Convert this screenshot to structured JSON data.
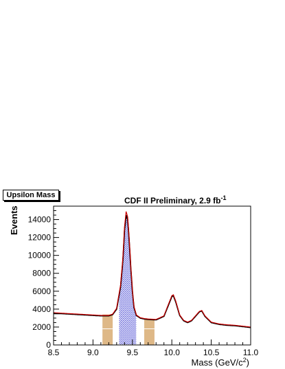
{
  "stat_box_label": "Upsilon Mass",
  "title_main": "CDF II Preliminary, 2.9 fb",
  "title_sup": "-1",
  "chart_data": {
    "type": "histogram",
    "xlabel_main": "Mass (GeV/c",
    "xlabel_sup": "2",
    "xlabel_close": ")",
    "ylabel": "Events",
    "xlim": [
      8.5,
      11.0
    ],
    "ylim": [
      0,
      15500
    ],
    "x_ticks": [
      8.5,
      9.0,
      9.5,
      10.0,
      10.5,
      11.0
    ],
    "x_tick_labels": [
      "8.5",
      "9.0",
      "9.5",
      "10.0",
      "10.5",
      "11.0"
    ],
    "y_ticks": [
      0,
      2000,
      4000,
      6000,
      8000,
      10000,
      12000,
      14000
    ],
    "y_tick_labels": [
      "0",
      "2000",
      "4000",
      "6000",
      "8000",
      "10000",
      "12000",
      "14000"
    ],
    "signal_region": {
      "x_min": 9.33,
      "x_max": 9.55,
      "color": "#3333cc"
    },
    "sideband_regions": [
      {
        "x_min": 9.12,
        "x_max": 9.25,
        "color": "#deb887"
      },
      {
        "x_min": 9.65,
        "x_max": 9.78,
        "color": "#deb887"
      }
    ],
    "data_points": {
      "x": [
        8.5,
        8.6,
        8.7,
        8.8,
        8.9,
        9.0,
        9.1,
        9.2,
        9.25,
        9.3,
        9.35,
        9.38,
        9.4,
        9.42,
        9.44,
        9.46,
        9.48,
        9.5,
        9.52,
        9.55,
        9.6,
        9.65,
        9.7,
        9.8,
        9.9,
        9.95,
        10.0,
        10.02,
        10.05,
        10.1,
        10.15,
        10.2,
        10.25,
        10.3,
        10.35,
        10.38,
        10.42,
        10.5,
        10.6,
        10.7,
        10.8,
        10.9,
        11.0
      ],
      "y": [
        3500,
        3500,
        3450,
        3400,
        3350,
        3300,
        3250,
        3250,
        3400,
        4000,
        6500,
        9500,
        12800,
        14500,
        14000,
        11500,
        8500,
        6000,
        4200,
        3300,
        3000,
        2900,
        2850,
        2800,
        3200,
        4300,
        5400,
        5500,
        4800,
        3300,
        2700,
        2500,
        2700,
        3200,
        3700,
        3800,
        3200,
        2500,
        2300,
        2200,
        2150,
        2050,
        1950
      ]
    },
    "fit_curve": {
      "x": [
        8.5,
        8.6,
        8.7,
        8.8,
        8.9,
        9.0,
        9.1,
        9.2,
        9.25,
        9.3,
        9.35,
        9.38,
        9.4,
        9.42,
        9.44,
        9.46,
        9.48,
        9.5,
        9.52,
        9.55,
        9.6,
        9.65,
        9.7,
        9.8,
        9.9,
        9.95,
        10.0,
        10.02,
        10.05,
        10.1,
        10.15,
        10.2,
        10.25,
        10.3,
        10.35,
        10.38,
        10.42,
        10.5,
        10.6,
        10.7,
        10.8,
        10.9,
        11.0
      ],
      "y": [
        3600,
        3550,
        3500,
        3450,
        3400,
        3350,
        3300,
        3300,
        3450,
        4100,
        6700,
        9800,
        13200,
        14900,
        14300,
        11800,
        8700,
        6100,
        4300,
        3350,
        3050,
        2950,
        2900,
        2850,
        3250,
        4400,
        5500,
        5600,
        4900,
        3350,
        2750,
        2550,
        2750,
        3250,
        3750,
        3850,
        3250,
        2550,
        2350,
        2250,
        2200,
        2100,
        2000
      ],
      "color": "#cc0000"
    }
  }
}
